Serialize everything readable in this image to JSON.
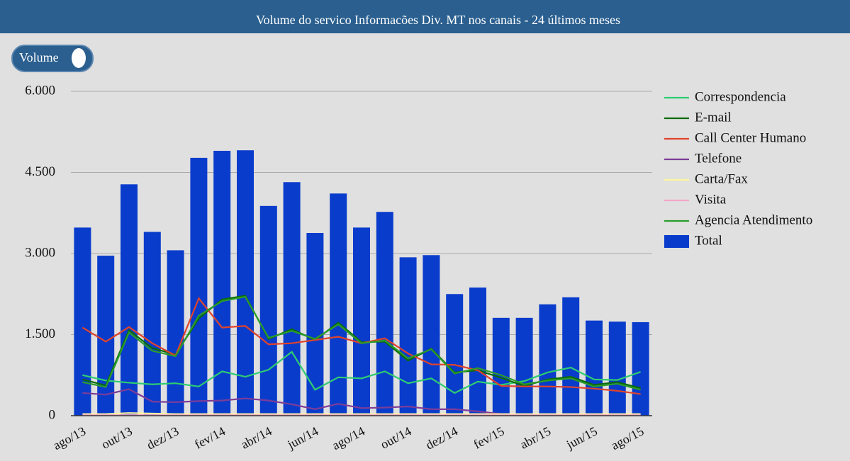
{
  "chart_data": {
    "type": "bar",
    "title": "Volume do servico Informacões Div. MT nos canais - 24 últimos meses",
    "toggle_label": "Volume",
    "categories": [
      "ago/13",
      null,
      "out/13",
      null,
      "dez/13",
      null,
      "fev/14",
      null,
      "abr/14",
      null,
      "jun/14",
      null,
      "ago/14",
      null,
      "out/14",
      null,
      "dez/14",
      null,
      "fev/15",
      null,
      "abr/15",
      null,
      "jun/15",
      null,
      "ago/15"
    ],
    "ylim": [
      0,
      6000
    ],
    "yticks": [
      0,
      {
        "value": 1500,
        "label": "1.500"
      },
      {
        "value": 3000,
        "label": "3.000"
      },
      {
        "value": 4500,
        "label": "4.500"
      },
      {
        "value": 6000,
        "label": "6.000"
      }
    ],
    "grid": true,
    "legend": "right",
    "series": [
      {
        "name": "Correspondencia",
        "type": "line",
        "color": "#2ecc71",
        "values": [
          750,
          650,
          610,
          580,
          600,
          540,
          820,
          720,
          850,
          1180,
          480,
          710,
          690,
          820,
          600,
          690,
          420,
          630,
          570,
          640,
          800,
          890,
          670,
          660,
          810
        ]
      },
      {
        "name": "E-mail",
        "type": "line",
        "color": "#0b6b0b",
        "values": [
          670,
          560,
          1580,
          1250,
          1130,
          1800,
          2150,
          2220,
          1420,
          1600,
          1400,
          1720,
          1360,
          1370,
          1020,
          1240,
          800,
          840,
          700,
          550,
          670,
          720,
          570,
          620,
          510
        ]
      },
      {
        "name": "Call Center Humano",
        "type": "line",
        "color": "#e0432b",
        "values": [
          1630,
          1370,
          1640,
          1340,
          1110,
          2170,
          1630,
          1660,
          1320,
          1340,
          1400,
          1460,
          1340,
          1430,
          1150,
          950,
          940,
          840,
          550,
          540,
          540,
          530,
          500,
          460,
          400
        ]
      },
      {
        "name": "Telefone",
        "type": "line",
        "color": "#7d3c98",
        "values": [
          420,
          390,
          490,
          260,
          250,
          270,
          280,
          320,
          280,
          210,
          120,
          220,
          140,
          150,
          170,
          120,
          120,
          80,
          30,
          20,
          20,
          20,
          20,
          20,
          20
        ]
      },
      {
        "name": "Carta/Fax",
        "type": "line",
        "color": "#fff59d",
        "values": [
          30,
          30,
          50,
          40,
          30,
          30,
          30,
          30,
          30,
          30,
          30,
          30,
          30,
          30,
          30,
          30,
          30,
          30,
          30,
          30,
          30,
          30,
          30,
          30,
          30
        ]
      },
      {
        "name": "Visita",
        "type": "line",
        "color": "#f4a6c6",
        "values": [
          10,
          10,
          10,
          10,
          10,
          10,
          10,
          10,
          10,
          10,
          10,
          10,
          10,
          10,
          10,
          10,
          10,
          10,
          10,
          10,
          10,
          10,
          10,
          10,
          10
        ]
      },
      {
        "name": "Agencia Atendimento",
        "type": "line",
        "color": "#2a9d2a",
        "values": [
          620,
          530,
          1540,
          1200,
          1100,
          1850,
          2120,
          2200,
          1440,
          1570,
          1420,
          1690,
          1340,
          1390,
          1060,
          1230,
          780,
          880,
          750,
          580,
          650,
          690,
          540,
          590,
          480
        ]
      },
      {
        "name": "Total",
        "type": "bar",
        "color": "#0a3ccc",
        "values": [
          3480,
          2960,
          4280,
          3400,
          3060,
          4770,
          4900,
          4910,
          3880,
          4320,
          3380,
          4110,
          3480,
          3770,
          2930,
          2970,
          2250,
          2370,
          1810,
          1810,
          2060,
          2190,
          1760,
          1740,
          1730
        ]
      }
    ]
  }
}
